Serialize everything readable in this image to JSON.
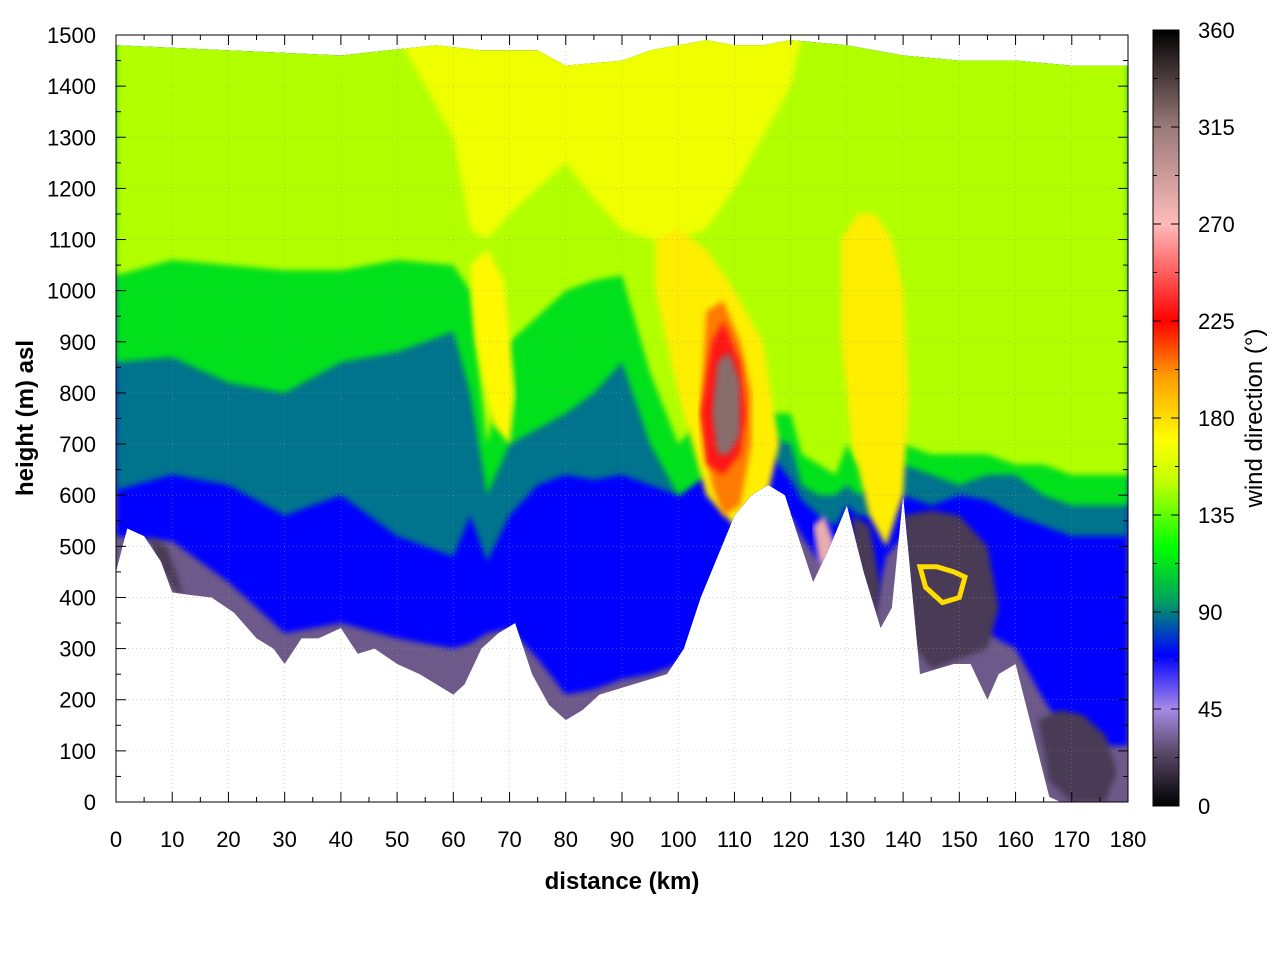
{
  "chart_data": {
    "type": "heatmap",
    "title": "",
    "xlabel": "distance (km)",
    "ylabel": "height (m) asl",
    "xlim": [
      0,
      180
    ],
    "ylim": [
      0,
      1500
    ],
    "x_ticks": [
      "0",
      "10",
      "20",
      "30",
      "40",
      "50",
      "60",
      "70",
      "80",
      "90",
      "100",
      "110",
      "120",
      "130",
      "140",
      "150",
      "160",
      "170",
      "180"
    ],
    "y_ticks": [
      "0",
      "100",
      "200",
      "300",
      "400",
      "500",
      "600",
      "700",
      "800",
      "900",
      "1000",
      "1100",
      "1200",
      "1300",
      "1400",
      "1500"
    ],
    "grid": true,
    "colorbar": {
      "label": "wind direction (°)",
      "range": [
        0,
        360
      ],
      "ticks": [
        "0",
        "45",
        "90",
        "135",
        "180",
        "225",
        "270",
        "315",
        "360"
      ],
      "stops": [
        {
          "value": 0,
          "color": "#000000"
        },
        {
          "value": 25,
          "color": "#5a4a6a"
        },
        {
          "value": 45,
          "color": "#a98ae8"
        },
        {
          "value": 70,
          "color": "#0000ff"
        },
        {
          "value": 95,
          "color": "#00a060"
        },
        {
          "value": 120,
          "color": "#00ff00"
        },
        {
          "value": 150,
          "color": "#bfff00"
        },
        {
          "value": 170,
          "color": "#ffff00"
        },
        {
          "value": 200,
          "color": "#ff9900"
        },
        {
          "value": 225,
          "color": "#ff0000"
        },
        {
          "value": 270,
          "color": "#ffbbbb"
        },
        {
          "value": 315,
          "color": "#9a7a7a"
        },
        {
          "value": 360,
          "color": "#000000"
        }
      ]
    },
    "terrain_profile": {
      "x": [
        0,
        2,
        5,
        8,
        10,
        13,
        17,
        21,
        25,
        28,
        30,
        33,
        36,
        40,
        43,
        46,
        50,
        54,
        57,
        60,
        62,
        65,
        68,
        71,
        74,
        77,
        80,
        83,
        86,
        89,
        92,
        95,
        98,
        101,
        104,
        107,
        110,
        113,
        116,
        119,
        121,
        124,
        127,
        130,
        133,
        136,
        138,
        140,
        143,
        146,
        149,
        152,
        155,
        157,
        160,
        163,
        166,
        168,
        170,
        172,
        175,
        177,
        180
      ],
      "y": [
        450,
        535,
        520,
        470,
        410,
        405,
        400,
        370,
        320,
        300,
        270,
        320,
        320,
        340,
        290,
        300,
        270,
        250,
        230,
        210,
        230,
        300,
        330,
        350,
        250,
        190,
        160,
        180,
        210,
        220,
        230,
        240,
        250,
        300,
        400,
        480,
        560,
        600,
        620,
        600,
        530,
        430,
        500,
        580,
        450,
        340,
        380,
        600,
        250,
        260,
        270,
        270,
        200,
        250,
        270,
        140,
        10,
        0,
        0,
        0,
        0,
        0,
        0
      ]
    },
    "column_top": {
      "x": [
        0,
        20,
        40,
        57,
        65,
        75,
        80,
        90,
        95,
        100,
        105,
        110,
        115,
        120,
        130,
        140,
        150,
        160,
        170,
        180
      ],
      "y": [
        1480,
        1470,
        1460,
        1480,
        1470,
        1470,
        1440,
        1450,
        1470,
        1480,
        1490,
        1480,
        1480,
        1490,
        1480,
        1460,
        1450,
        1450,
        1440,
        1440
      ]
    },
    "layers": {
      "x": [
        0,
        10,
        20,
        30,
        40,
        50,
        60,
        63,
        66,
        70,
        75,
        80,
        85,
        90,
        95,
        100,
        105,
        110,
        115,
        120,
        122,
        125,
        128,
        130,
        132,
        135,
        137,
        140,
        145,
        150,
        155,
        160,
        165,
        170,
        175,
        180
      ],
      "boundaries": [
        {
          "lower_deg": 30,
          "upper_deg": 70,
          "height": [
            520,
            510,
            430,
            330,
            350,
            320,
            300,
            310,
            330,
            340,
            280,
            210,
            220,
            240,
            250,
            270,
            320,
            380,
            450,
            560,
            520,
            470,
            460,
            520,
            430,
            380,
            480,
            520,
            360,
            350,
            330,
            300,
            200,
            120,
            110,
            110
          ]
        },
        {
          "lower_deg": 70,
          "upper_deg": 88,
          "height": [
            610,
            640,
            620,
            560,
            600,
            520,
            480,
            560,
            470,
            560,
            620,
            640,
            630,
            640,
            620,
            600,
            640,
            640,
            700,
            630,
            590,
            560,
            540,
            580,
            560,
            560,
            600,
            600,
            580,
            600,
            590,
            560,
            540,
            520,
            520,
            520
          ]
        },
        {
          "lower_deg": 88,
          "upper_deg": 112,
          "height": [
            860,
            870,
            820,
            800,
            860,
            880,
            920,
            800,
            600,
            700,
            730,
            760,
            800,
            860,
            700,
            600,
            640,
            660,
            720,
            700,
            620,
            600,
            600,
            620,
            600,
            620,
            640,
            660,
            640,
            620,
            640,
            640,
            600,
            580,
            580,
            580
          ]
        },
        {
          "lower_deg": 112,
          "upper_deg": 148,
          "height": [
            1030,
            1060,
            1050,
            1040,
            1040,
            1060,
            1050,
            1000,
            700,
            900,
            950,
            1000,
            1020,
            1030,
            840,
            700,
            760,
            780,
            760,
            760,
            680,
            660,
            640,
            700,
            660,
            680,
            700,
            700,
            680,
            680,
            680,
            660,
            660,
            640,
            640,
            640
          ]
        },
        {
          "lower_deg": 148,
          "upper_deg": 165,
          "height": [
            1500,
            1500,
            1500,
            1500,
            1500,
            1500,
            1300,
            1120,
            1100,
            1150,
            1200,
            1250,
            1180,
            1120,
            1100,
            1100,
            1120,
            1200,
            1300,
            1400,
            1500,
            1500,
            1500,
            1500,
            1500,
            1500,
            1500,
            1500,
            1500,
            1500,
            1500,
            1500,
            1500,
            1500,
            1500,
            1500
          ]
        }
      ],
      "top_deg": 150
    },
    "features": [
      {
        "kind": "warm",
        "deg": 175,
        "x": [
          96,
          100,
          105,
          110,
          115,
          118,
          115,
          110,
          105,
          100,
          96
        ],
        "y": [
          1100,
          1120,
          1080,
          1000,
          900,
          700,
          560,
          540,
          600,
          800,
          1000
        ]
      },
      {
        "kind": "warm",
        "deg": 175,
        "x": [
          129,
          132,
          135,
          138,
          140,
          141,
          140,
          137,
          134,
          131,
          129
        ],
        "y": [
          1100,
          1150,
          1150,
          1100,
          1000,
          800,
          600,
          500,
          560,
          700,
          900
        ]
      },
      {
        "kind": "warm",
        "deg": 172,
        "x": [
          63,
          66,
          69,
          71,
          70,
          67,
          64
        ],
        "y": [
          1050,
          1080,
          1020,
          800,
          700,
          740,
          900
        ]
      },
      {
        "kind": "orange",
        "deg": 205,
        "x": [
          105,
          108,
          111,
          113,
          113,
          111,
          108,
          106,
          104
        ],
        "y": [
          960,
          980,
          900,
          800,
          700,
          580,
          560,
          620,
          760
        ]
      },
      {
        "kind": "red",
        "deg": 230,
        "x": [
          106,
          108,
          111,
          112,
          111,
          108,
          105,
          104
        ],
        "y": [
          900,
          940,
          860,
          760,
          680,
          640,
          660,
          760
        ]
      },
      {
        "kind": "core",
        "deg": 320,
        "x": [
          107,
          109,
          111,
          111,
          109,
          107,
          106
        ],
        "y": [
          860,
          880,
          820,
          720,
          680,
          680,
          760
        ]
      },
      {
        "kind": "pink",
        "deg": 280,
        "x": [
          124,
          126,
          128,
          127,
          125
        ],
        "y": [
          540,
          560,
          500,
          450,
          470
        ]
      },
      {
        "kind": "dark",
        "deg": 20,
        "x": [
          6,
          9,
          11,
          12,
          10,
          7
        ],
        "y": [
          520,
          500,
          440,
          400,
          420,
          480
        ]
      },
      {
        "kind": "dark",
        "deg": 20,
        "x": [
          131,
          134,
          136,
          135,
          133,
          131
        ],
        "y": [
          560,
          540,
          420,
          330,
          350,
          450
        ]
      },
      {
        "kind": "dark",
        "deg": 20,
        "x": [
          140,
          145,
          150,
          155,
          157,
          155,
          150,
          145,
          141
        ],
        "y": [
          560,
          570,
          560,
          500,
          380,
          300,
          280,
          260,
          320
        ]
      },
      {
        "kind": "dark",
        "deg": 20,
        "x": [
          164,
          168,
          172,
          176,
          178,
          176,
          170,
          166
        ],
        "y": [
          160,
          180,
          170,
          130,
          60,
          0,
          0,
          40
        ]
      },
      {
        "kind": "ring",
        "deg": 180,
        "x": [
          143,
          146,
          149,
          151,
          150,
          147,
          144
        ],
        "y": [
          460,
          460,
          450,
          440,
          400,
          390,
          420
        ]
      }
    ]
  }
}
